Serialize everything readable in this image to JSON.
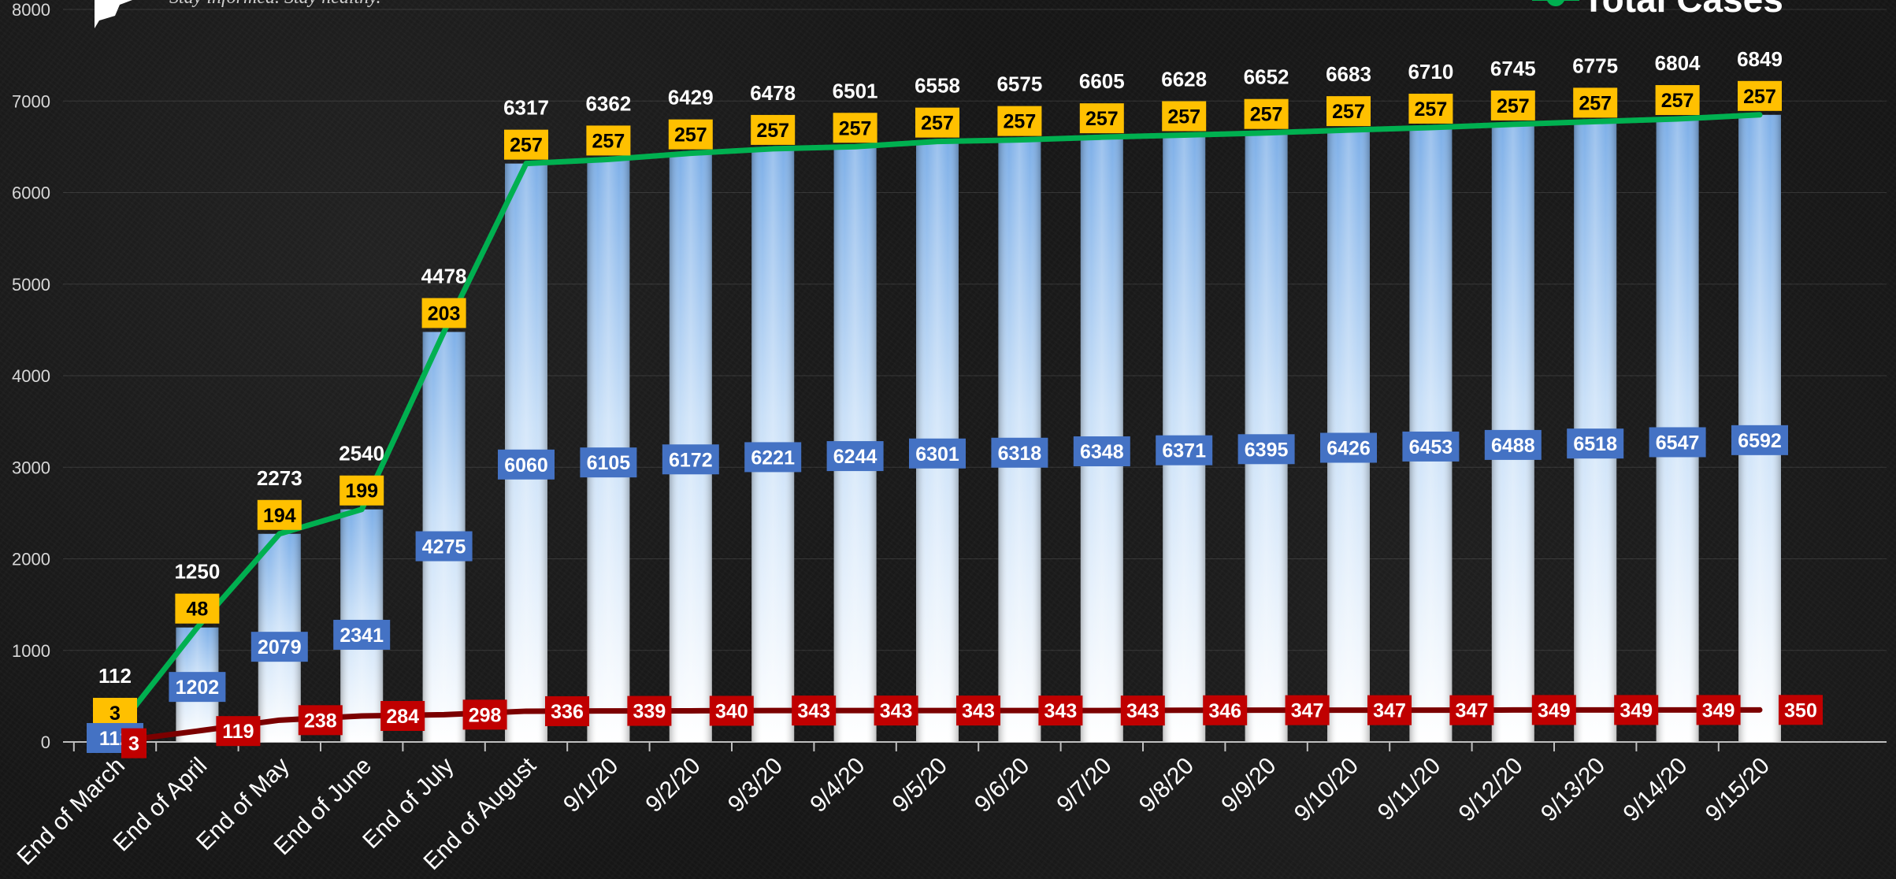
{
  "header": {
    "tagline": "Stay informed. Stay healthy.",
    "legend_label": "Total Cases"
  },
  "colors": {
    "total_line": "#00b050",
    "recovered_box": "#4472c4",
    "deaths_line": "#7b0000",
    "deaths_box": "#c00000",
    "active_box": "#ffc000"
  },
  "chart_data": {
    "type": "bar",
    "categories": [
      "End of March",
      "End of April",
      "End of May",
      "End of June",
      "End of July",
      "End of August",
      "9/1/20",
      "9/2/20",
      "9/3/20",
      "9/4/20",
      "9/5/20",
      "9/6/20",
      "9/7/20",
      "9/8/20",
      "9/9/20",
      "9/10/20",
      "9/11/20",
      "9/12/20",
      "9/13/20",
      "9/14/20",
      "9/15/20"
    ],
    "ylim": [
      0,
      8000
    ],
    "yticks": [
      0,
      1000,
      2000,
      3000,
      4000,
      5000,
      6000,
      7000,
      8000
    ],
    "grid": true,
    "legend_position": "top-right",
    "series": [
      {
        "name": "Total Cases",
        "kind": "line+bar",
        "values": [
          112,
          1250,
          2273,
          2540,
          4478,
          6317,
          6362,
          6429,
          6478,
          6501,
          6558,
          6575,
          6605,
          6628,
          6652,
          6683,
          6710,
          6745,
          6775,
          6804,
          6849
        ]
      },
      {
        "kind": "label",
        "values": [
          112,
          1202,
          2079,
          2341,
          4275,
          6060,
          6105,
          6172,
          6221,
          6244,
          6301,
          6318,
          6348,
          6371,
          6395,
          6426,
          6453,
          6488,
          6518,
          6547,
          6592
        ]
      },
      {
        "kind": "label",
        "values": [
          3,
          48,
          194,
          199,
          203,
          257,
          257,
          257,
          257,
          257,
          257,
          257,
          257,
          257,
          257,
          257,
          257,
          257,
          257,
          257,
          257
        ]
      },
      {
        "kind": "line",
        "values": [
          3,
          119,
          238,
          284,
          298,
          336,
          339,
          340,
          343,
          343,
          343,
          343,
          343,
          346,
          347,
          347,
          347,
          349,
          349,
          349,
          350
        ]
      }
    ]
  }
}
